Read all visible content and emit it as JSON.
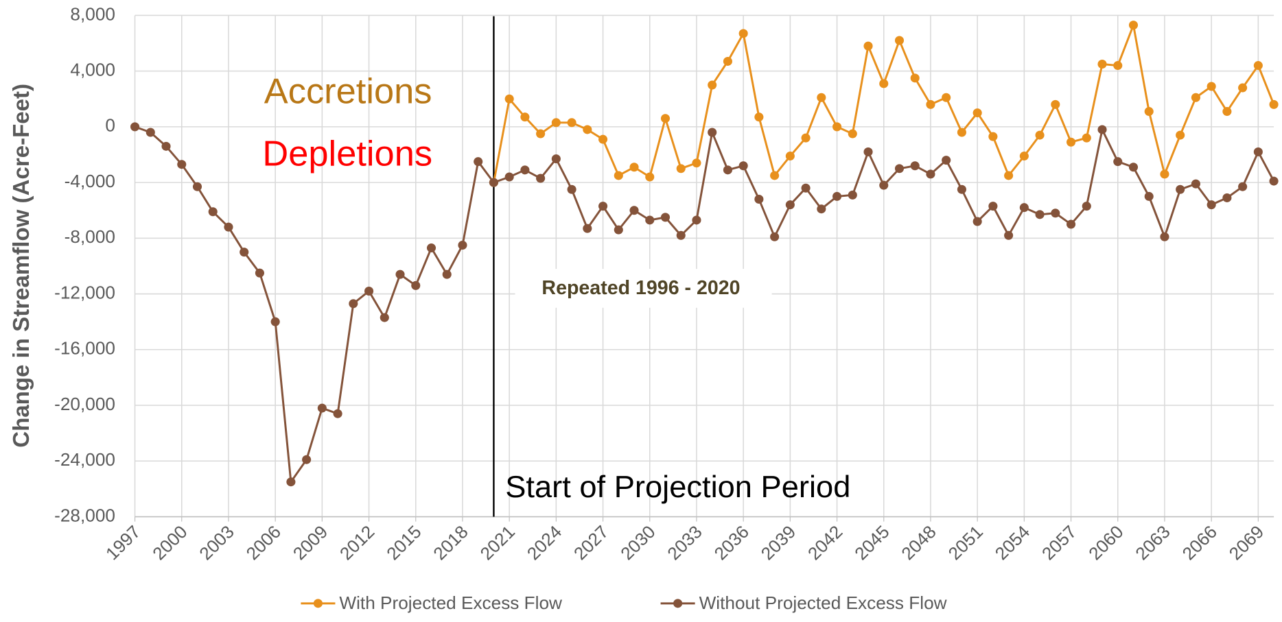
{
  "chart_data": {
    "type": "line",
    "y_label": "Change in Streamflow  (Acre-Feet)",
    "annotations": [
      "Accretions",
      "Depletions",
      "Repeated 1996 - 2020",
      "Start of Projection Period"
    ],
    "vline_x": 2020,
    "x": [
      1997,
      1998,
      1999,
      2000,
      2001,
      2002,
      2003,
      2004,
      2005,
      2006,
      2007,
      2008,
      2009,
      2010,
      2011,
      2012,
      2013,
      2014,
      2015,
      2016,
      2017,
      2018,
      2019,
      2020,
      2021,
      2022,
      2023,
      2024,
      2025,
      2026,
      2027,
      2028,
      2029,
      2030,
      2031,
      2032,
      2033,
      2034,
      2035,
      2036,
      2037,
      2038,
      2039,
      2040,
      2041,
      2042,
      2043,
      2044,
      2045,
      2046,
      2047,
      2048,
      2049,
      2050,
      2051,
      2052,
      2053,
      2054,
      2055,
      2056,
      2057,
      2058,
      2059,
      2060,
      2061,
      2062,
      2063,
      2064,
      2065,
      2066,
      2067,
      2068,
      2069,
      2070
    ],
    "series": [
      {
        "name": "With Projected Excess Flow",
        "color": "#e8901c",
        "values": [
          null,
          null,
          null,
          null,
          null,
          null,
          null,
          null,
          null,
          null,
          null,
          null,
          null,
          null,
          null,
          null,
          null,
          null,
          null,
          null,
          null,
          null,
          null,
          -4000,
          2000,
          700,
          -500,
          300,
          300,
          -200,
          -900,
          -3500,
          -2900,
          -3600,
          600,
          -3000,
          -2600,
          3000,
          4700,
          6700,
          700,
          -3500,
          -2100,
          -800,
          2100,
          0,
          -500,
          5800,
          3100,
          6200,
          3500,
          1600,
          2100,
          -400,
          1000,
          -700,
          -3500,
          -2100,
          -600,
          1600,
          -1100,
          -800,
          4500,
          4400,
          7300,
          1100,
          -3400,
          -600,
          2100,
          2900,
          1100,
          2800,
          4400,
          1600
        ]
      },
      {
        "name": "Without Projected Excess Flow",
        "color": "#84533a",
        "values": [
          0,
          -400,
          -1400,
          -2700,
          -4300,
          -6100,
          -7200,
          -9000,
          -10500,
          -14000,
          -25500,
          -23900,
          -20200,
          -20600,
          -12700,
          -11800,
          -13700,
          -10600,
          -11400,
          -8700,
          -10600,
          -8500,
          -2500,
          -4000,
          -3600,
          -3100,
          -3700,
          -2300,
          -4500,
          -7300,
          -5700,
          -7400,
          -6000,
          -6700,
          -6500,
          -7800,
          -6700,
          -400,
          -3100,
          -2800,
          -5200,
          -7900,
          -5600,
          -4400,
          -5900,
          -5000,
          -4900,
          -1800,
          -4200,
          -3000,
          -2800,
          -3400,
          -2400,
          -4500,
          -6800,
          -5700,
          -7800,
          -5800,
          -6300,
          -6200,
          -7000,
          -5700,
          -200,
          -2500,
          -2900,
          -5000,
          -7900,
          -4500,
          -4100,
          -5600,
          -5100,
          -4300,
          -1800,
          -3900
        ]
      }
    ],
    "xlim": [
      1997,
      2070
    ],
    "xticks": [
      1997,
      2000,
      2003,
      2006,
      2009,
      2012,
      2015,
      2018,
      2021,
      2024,
      2027,
      2030,
      2033,
      2036,
      2039,
      2042,
      2045,
      2048,
      2051,
      2054,
      2057,
      2060,
      2063,
      2066,
      2069
    ],
    "ylim": [
      -28000,
      8000
    ],
    "yticks": [
      {
        "value": 8000,
        "label": "8,000"
      },
      {
        "value": 4000,
        "label": "4,000"
      },
      0,
      {
        "value": -4000,
        "label": "-4,000"
      },
      {
        "value": -8000,
        "label": "-8,000"
      },
      {
        "value": -12000,
        "label": "-12,000"
      },
      {
        "value": -16000,
        "label": "-16,000"
      },
      {
        "value": -20000,
        "label": "-20,000"
      },
      {
        "value": -24000,
        "label": "-24,000"
      },
      {
        "value": -28000,
        "label": "-28,000"
      }
    ],
    "grid": true,
    "legend": "bottom"
  }
}
